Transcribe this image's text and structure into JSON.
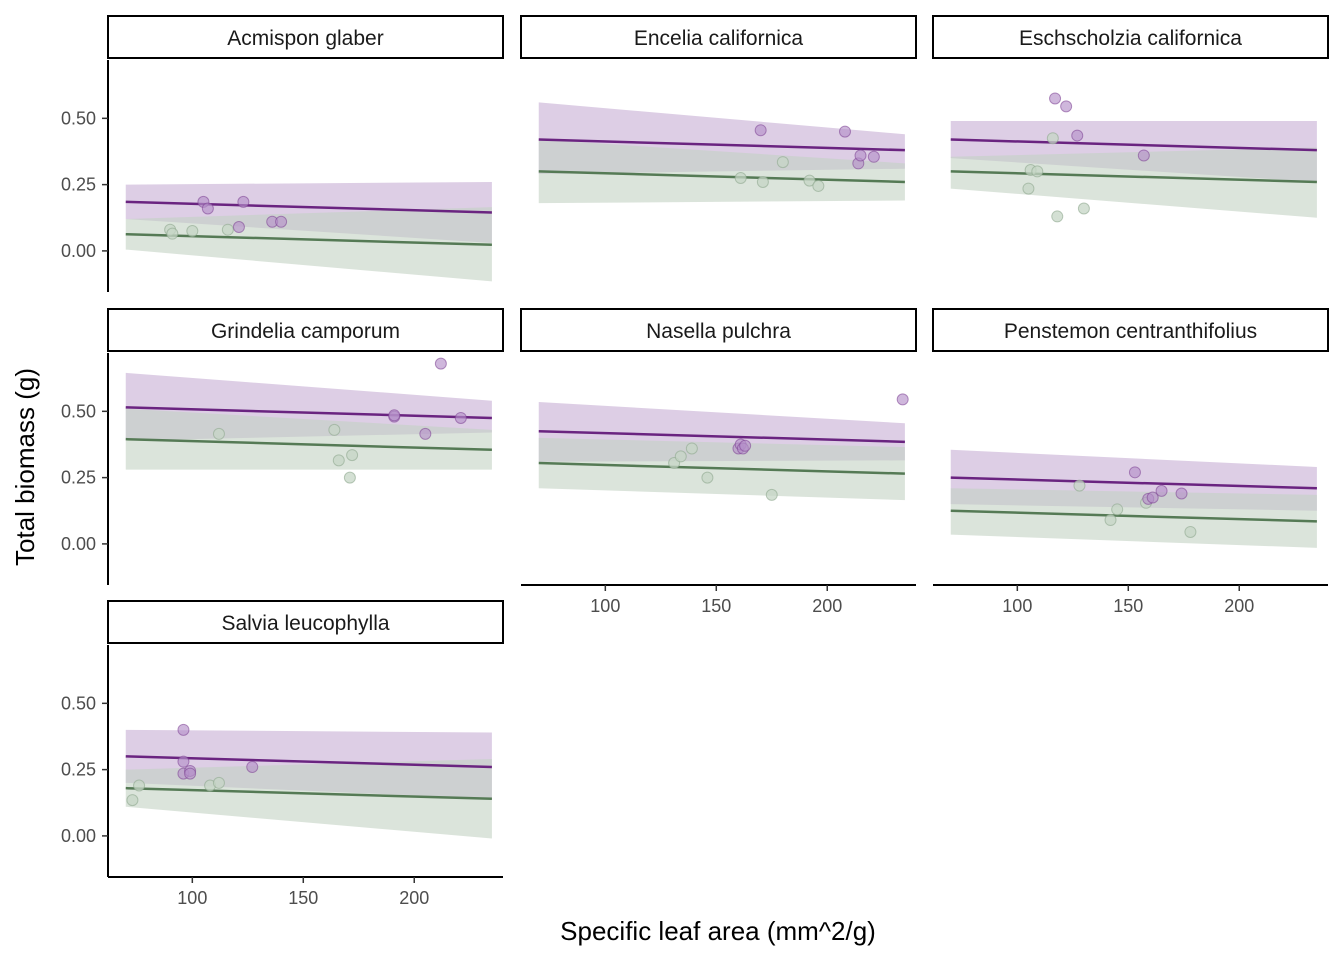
{
  "chart_data": {
    "type": "scatter",
    "layout": "facet-grid",
    "xlabel": "Specific leaf area (mm^2/g)",
    "ylabel": "Total biomass (g)",
    "xlim": [
      62,
      240
    ],
    "ylim": [
      -0.155,
      0.72
    ],
    "x_ticks": [
      100,
      150,
      200
    ],
    "x_tick_labels": [
      "100",
      "150",
      "200"
    ],
    "y_ticks": [
      0.0,
      0.25,
      0.5
    ],
    "y_tick_labels": [
      "0.00",
      "0.25",
      "0.50"
    ],
    "grid": false,
    "legend": "none",
    "fit_x_range": [
      70,
      235
    ],
    "colors": {
      "purple_line": "#6a2480",
      "purple_band": "#c7aed4",
      "purple_point": "#b590c9",
      "purple_point_stroke": "#7b3f92",
      "green_line": "#557a55",
      "green_band": "#c3d2c3",
      "green_point": "#c5d6c5",
      "green_point_stroke": "#8fa88f"
    },
    "facets": [
      {
        "name": "Acmispon glaber",
        "purple_fit": {
          "y": [
            0.185,
            0.145
          ],
          "lo": [
            0.12,
            0.03
          ],
          "hi": [
            0.25,
            0.26
          ]
        },
        "green_fit": {
          "y": [
            0.063,
            0.023
          ],
          "lo": [
            0.005,
            -0.115
          ],
          "hi": [
            0.12,
            0.165
          ]
        },
        "purple_points": [
          [
            105,
            0.185
          ],
          [
            107,
            0.16
          ],
          [
            121,
            0.09
          ],
          [
            123,
            0.185
          ],
          [
            136,
            0.11
          ],
          [
            140,
            0.11
          ]
        ],
        "green_points": [
          [
            90,
            0.08
          ],
          [
            91,
            0.065
          ],
          [
            100,
            0.075
          ],
          [
            116,
            0.08
          ]
        ]
      },
      {
        "name": "Encelia californica",
        "purple_fit": {
          "y": [
            0.42,
            0.38
          ],
          "lo": [
            0.29,
            0.31
          ],
          "hi": [
            0.56,
            0.44
          ]
        },
        "green_fit": {
          "y": [
            0.3,
            0.26
          ],
          "lo": [
            0.18,
            0.19
          ],
          "hi": [
            0.42,
            0.33
          ]
        },
        "purple_points": [
          [
            170,
            0.455
          ],
          [
            208,
            0.45
          ],
          [
            214,
            0.33
          ],
          [
            215,
            0.36
          ],
          [
            221,
            0.355
          ]
        ],
        "green_points": [
          [
            161,
            0.275
          ],
          [
            171,
            0.26
          ],
          [
            180,
            0.335
          ],
          [
            192,
            0.265
          ],
          [
            196,
            0.245
          ]
        ]
      },
      {
        "name": "Eschscholzia californica",
        "purple_fit": {
          "y": [
            0.42,
            0.38
          ],
          "lo": [
            0.35,
            0.26
          ],
          "hi": [
            0.49,
            0.49
          ]
        },
        "green_fit": {
          "y": [
            0.3,
            0.26
          ],
          "lo": [
            0.235,
            0.125
          ],
          "hi": [
            0.355,
            0.39
          ]
        },
        "purple_points": [
          [
            117,
            0.575
          ],
          [
            122,
            0.545
          ],
          [
            127,
            0.435
          ],
          [
            157,
            0.36
          ]
        ],
        "green_points": [
          [
            105,
            0.235
          ],
          [
            106,
            0.305
          ],
          [
            109,
            0.3
          ],
          [
            116,
            0.425
          ],
          [
            118,
            0.13
          ],
          [
            130,
            0.16
          ]
        ]
      },
      {
        "name": "Grindelia camporum",
        "purple_fit": {
          "y": [
            0.515,
            0.475
          ],
          "lo": [
            0.39,
            0.42
          ],
          "hi": [
            0.645,
            0.54
          ]
        },
        "green_fit": {
          "y": [
            0.395,
            0.355
          ],
          "lo": [
            0.28,
            0.28
          ],
          "hi": [
            0.51,
            0.43
          ]
        },
        "purple_points": [
          [
            191,
            0.48
          ],
          [
            191,
            0.485
          ],
          [
            212,
            0.68
          ],
          [
            205,
            0.415
          ],
          [
            221,
            0.475
          ]
        ],
        "green_points": [
          [
            112,
            0.415
          ],
          [
            164,
            0.43
          ],
          [
            166,
            0.315
          ],
          [
            171,
            0.25
          ],
          [
            172,
            0.335
          ]
        ]
      },
      {
        "name": "Nasella pulchra",
        "purple_fit": {
          "y": [
            0.425,
            0.385
          ],
          "lo": [
            0.31,
            0.315
          ],
          "hi": [
            0.535,
            0.455
          ]
        },
        "green_fit": {
          "y": [
            0.305,
            0.265
          ],
          "lo": [
            0.21,
            0.165
          ],
          "hi": [
            0.4,
            0.365
          ]
        },
        "purple_points": [
          [
            160,
            0.36
          ],
          [
            161,
            0.375
          ],
          [
            162,
            0.36
          ],
          [
            163,
            0.37
          ],
          [
            234,
            0.545
          ]
        ],
        "green_points": [
          [
            131,
            0.305
          ],
          [
            134,
            0.33
          ],
          [
            139,
            0.36
          ],
          [
            146,
            0.25
          ],
          [
            175,
            0.185
          ]
        ]
      },
      {
        "name": "Penstemon centranthifolius",
        "purple_fit": {
          "y": [
            0.25,
            0.21
          ],
          "lo": [
            0.15,
            0.125
          ],
          "hi": [
            0.355,
            0.29
          ]
        },
        "green_fit": {
          "y": [
            0.125,
            0.085
          ],
          "lo": [
            0.035,
            -0.015
          ],
          "hi": [
            0.21,
            0.185
          ]
        },
        "purple_points": [
          [
            153,
            0.27
          ],
          [
            159,
            0.17
          ],
          [
            161,
            0.175
          ],
          [
            165,
            0.2
          ],
          [
            174,
            0.19
          ]
        ],
        "green_points": [
          [
            128,
            0.22
          ],
          [
            142,
            0.09
          ],
          [
            145,
            0.13
          ],
          [
            158,
            0.155
          ],
          [
            178,
            0.045
          ]
        ]
      },
      {
        "name": "Salvia leucophylla",
        "purple_fit": {
          "y": [
            0.3,
            0.26
          ],
          "lo": [
            0.2,
            0.14
          ],
          "hi": [
            0.4,
            0.39
          ]
        },
        "green_fit": {
          "y": [
            0.18,
            0.14
          ],
          "lo": [
            0.11,
            -0.01
          ],
          "hi": [
            0.25,
            0.29
          ]
        },
        "purple_points": [
          [
            96,
            0.4
          ],
          [
            96,
            0.28
          ],
          [
            96,
            0.235
          ],
          [
            99,
            0.245
          ],
          [
            99,
            0.235
          ],
          [
            127,
            0.26
          ]
        ],
        "green_points": [
          [
            73,
            0.135
          ],
          [
            76,
            0.19
          ],
          [
            108,
            0.19
          ],
          [
            112,
            0.2
          ]
        ]
      }
    ]
  }
}
